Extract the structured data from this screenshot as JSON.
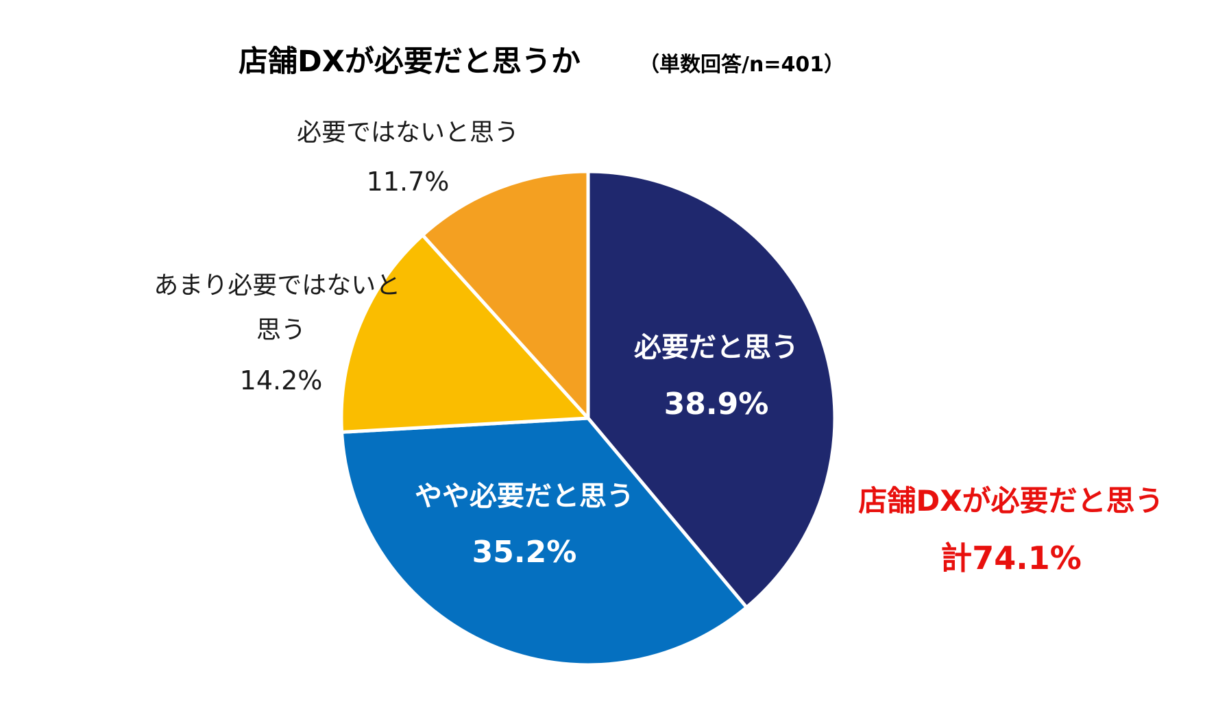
{
  "chart_data": {
    "type": "pie",
    "title": "店舗DXが必要だと思うか",
    "subtitle": "（単数回答/n=401）",
    "categories": [
      "必要だと思う",
      "やや必要だと思う",
      "あまり必要ではないと思う",
      "必要ではないと思う"
    ],
    "values": [
      38.9,
      35.2,
      14.2,
      11.7
    ],
    "value_labels": [
      "38.9%",
      "35.2%",
      "14.2%",
      "11.7%"
    ],
    "colors": [
      "#1f286e",
      "#0570c0",
      "#fabd00",
      "#f4a021"
    ],
    "start": "12 o'clock",
    "direction": "clockwise",
    "annotation": {
      "line1": "店舗DXが必要だと思う",
      "line2": "計74.1%",
      "color": "#e8100d"
    }
  }
}
